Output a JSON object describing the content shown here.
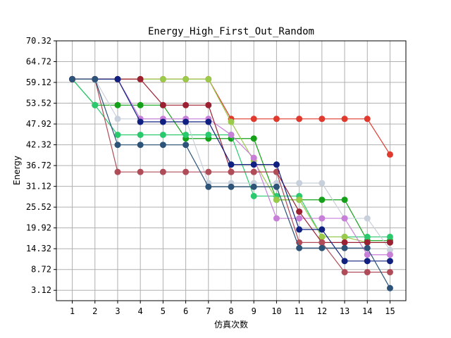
{
  "chart_data": {
    "type": "line",
    "title": "Energy_High_First_Out_Random",
    "xlabel": "仿真次数",
    "ylabel": "Energy",
    "x": [
      1,
      2,
      3,
      4,
      5,
      6,
      7,
      8,
      9,
      10,
      11,
      12,
      13,
      14,
      15
    ],
    "x_ticks": [
      "1",
      "2",
      "3",
      "4",
      "5",
      "6",
      "7",
      "8",
      "9",
      "10",
      "11",
      "12",
      "13",
      "14",
      "15"
    ],
    "xlim": [
      0.3,
      15.7
    ],
    "y_ticks": [
      "3.12",
      "8.72",
      "14.32",
      "19.92",
      "25.52",
      "31.12",
      "36.72",
      "42.32",
      "47.92",
      "53.52",
      "59.12",
      "64.72",
      "70.32"
    ],
    "ylim": [
      0.32,
      70.32
    ],
    "grid": true,
    "series": [
      {
        "color": "#e03a2e",
        "values": [
          60,
          60,
          60,
          60,
          60,
          60,
          60,
          49.3,
          49.3,
          49.3,
          49.3,
          49.3,
          49.3,
          49.3,
          39.7
        ]
      },
      {
        "color": "#14a018",
        "values": [
          60,
          53,
          53,
          53,
          53,
          44,
          44,
          44,
          44,
          27.5,
          27.5,
          27.5,
          27.5,
          16.5,
          16.5
        ]
      },
      {
        "color": "#2bc96e",
        "values": [
          60,
          53,
          45,
          45,
          45,
          45,
          45,
          45,
          28.5,
          28.5,
          28.5,
          17.5,
          17.5,
          17.5,
          17.5
        ]
      },
      {
        "color": "#9bc94a",
        "values": [
          60,
          60,
          60,
          60,
          60,
          60,
          60,
          48.5,
          38,
          27.5,
          27.5,
          17.5,
          17.5,
          16,
          16
        ]
      },
      {
        "color": "#c8d0dc",
        "values": [
          60,
          60,
          49.3,
          49.3,
          49.3,
          49.3,
          32,
          32,
          32,
          32,
          32,
          32,
          22.5,
          22.5,
          14
        ]
      },
      {
        "color": "#c77fd8",
        "values": [
          60,
          60,
          60,
          49.3,
          49.3,
          49.3,
          49.3,
          45,
          38.8,
          22.5,
          22.5,
          22.5,
          22.5,
          12.7,
          12.7
        ]
      },
      {
        "color": "#9b2032",
        "values": [
          60,
          60,
          60,
          60,
          53,
          53,
          53,
          35,
          35,
          35,
          24.3,
          16,
          16,
          16,
          16
        ]
      },
      {
        "color": "#b04c58",
        "values": [
          60,
          60,
          35,
          35,
          35,
          35,
          35,
          35,
          35,
          35,
          16,
          16,
          8,
          8,
          8
        ]
      },
      {
        "color": "#102080",
        "values": [
          60,
          60,
          60,
          48.5,
          48.5,
          48.5,
          48.5,
          37,
          37,
          37,
          19.5,
          19.5,
          11,
          11,
          11
        ]
      },
      {
        "color": "#2d5478",
        "values": [
          60,
          60,
          42.3,
          42.3,
          42.3,
          42.3,
          31,
          31,
          31,
          31,
          14.5,
          14.5,
          14.5,
          14.5,
          3.7
        ]
      }
    ]
  }
}
